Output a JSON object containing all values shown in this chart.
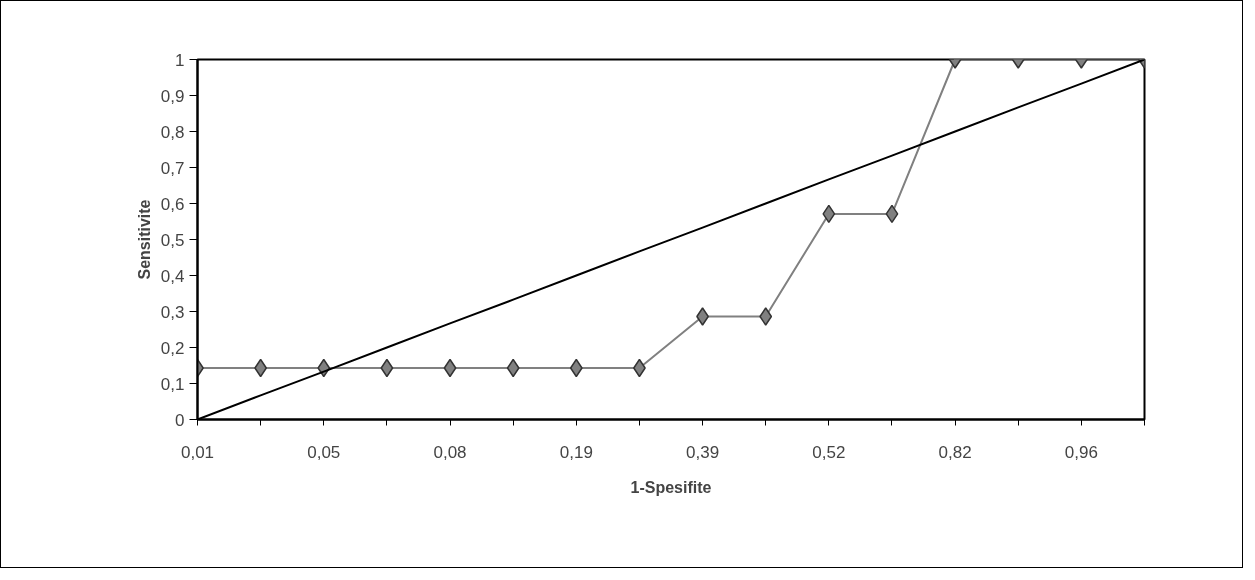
{
  "chart_data": {
    "type": "line",
    "xlabel": "1-Spesifite",
    "ylabel": "Sensitivite",
    "categories": [
      "0,01",
      null,
      "0,05",
      null,
      "0,08",
      null,
      "0,19",
      null,
      "0,39",
      null,
      "0,52",
      null,
      "0,82",
      null,
      "0,96",
      null
    ],
    "ylim": [
      0,
      1
    ],
    "yticks": [
      0,
      {
        "value": 0.1,
        "label": "0,1"
      },
      {
        "value": 0.2,
        "label": "0,2"
      },
      {
        "value": 0.3,
        "label": "0,3"
      },
      {
        "value": 0.4,
        "label": "0,4"
      },
      {
        "value": 0.5,
        "label": "0,5"
      },
      {
        "value": 0.6,
        "label": "0,6"
      },
      {
        "value": 0.7,
        "label": "0,7"
      },
      {
        "value": 0.8,
        "label": "0,8"
      },
      {
        "value": 0.9,
        "label": "0,9"
      },
      1
    ],
    "grid": false,
    "series": [
      {
        "color": "#808080",
        "marker": "diamond",
        "line_style": "solid",
        "values": [
          0.143,
          0.143,
          0.143,
          0.143,
          0.143,
          0.143,
          0.143,
          0.143,
          0.286,
          0.286,
          0.571,
          0.571,
          1,
          1,
          1,
          1
        ]
      },
      {
        "color": "#000000",
        "marker": "none",
        "line_style": "solid",
        "values": [
          0,
          0.067,
          0.133,
          0.2,
          0.267,
          0.333,
          0.4,
          0.467,
          0.533,
          0.6,
          0.667,
          0.733,
          0.8,
          0.867,
          0.933,
          1
        ]
      }
    ]
  }
}
